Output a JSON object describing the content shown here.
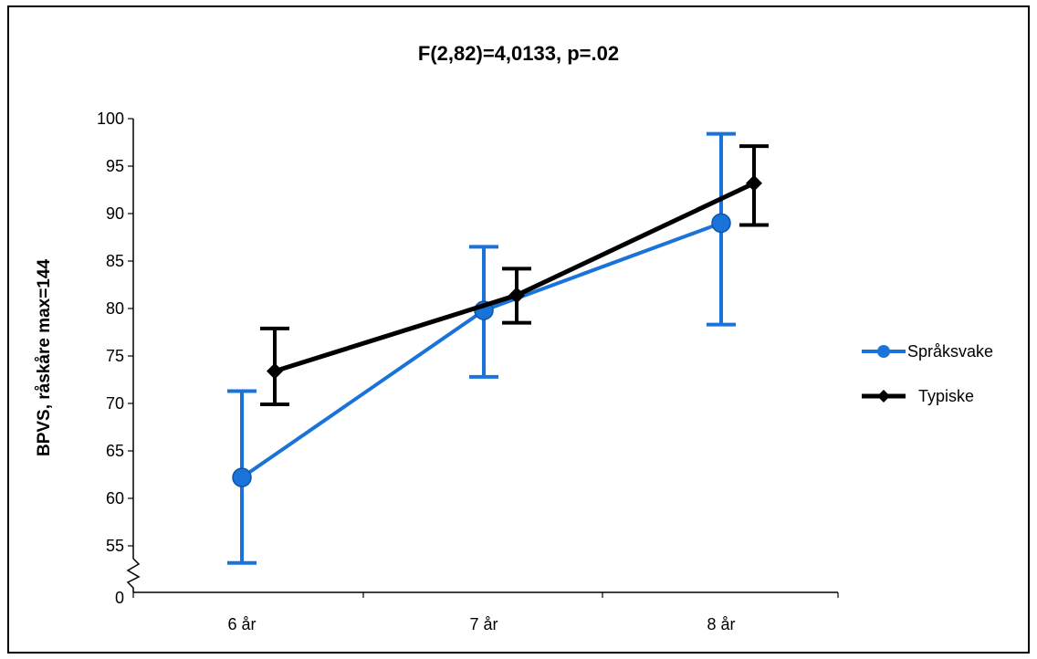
{
  "chart_data": {
    "type": "line",
    "title": "F(2,82)=4,0133, p=.02",
    "xlabel": "",
    "ylabel": "BPVS, råskåre max=144",
    "categories": [
      "6 år",
      "7 år",
      "8 år"
    ],
    "y_ticks": [
      "100",
      "95",
      "90",
      "85",
      "80",
      "75",
      "70",
      "65",
      "60",
      "55",
      "0"
    ],
    "y_axis_break": true,
    "ylim": [
      55,
      100
    ],
    "legend_position": "right",
    "grid": false,
    "series": [
      {
        "name": "Språksvake",
        "color": "#1a73d9",
        "marker": "circle",
        "values": [
          62.2,
          79.8,
          89.0
        ],
        "error_low": [
          53.2,
          72.8,
          78.3
        ],
        "error_high": [
          71.3,
          86.5,
          98.4
        ]
      },
      {
        "name": "Typiske",
        "color": "#000000",
        "marker": "diamond",
        "values": [
          73.4,
          81.4,
          93.2
        ],
        "error_low": [
          69.9,
          78.5,
          88.8
        ],
        "error_high": [
          77.9,
          84.2,
          97.1
        ]
      }
    ]
  }
}
